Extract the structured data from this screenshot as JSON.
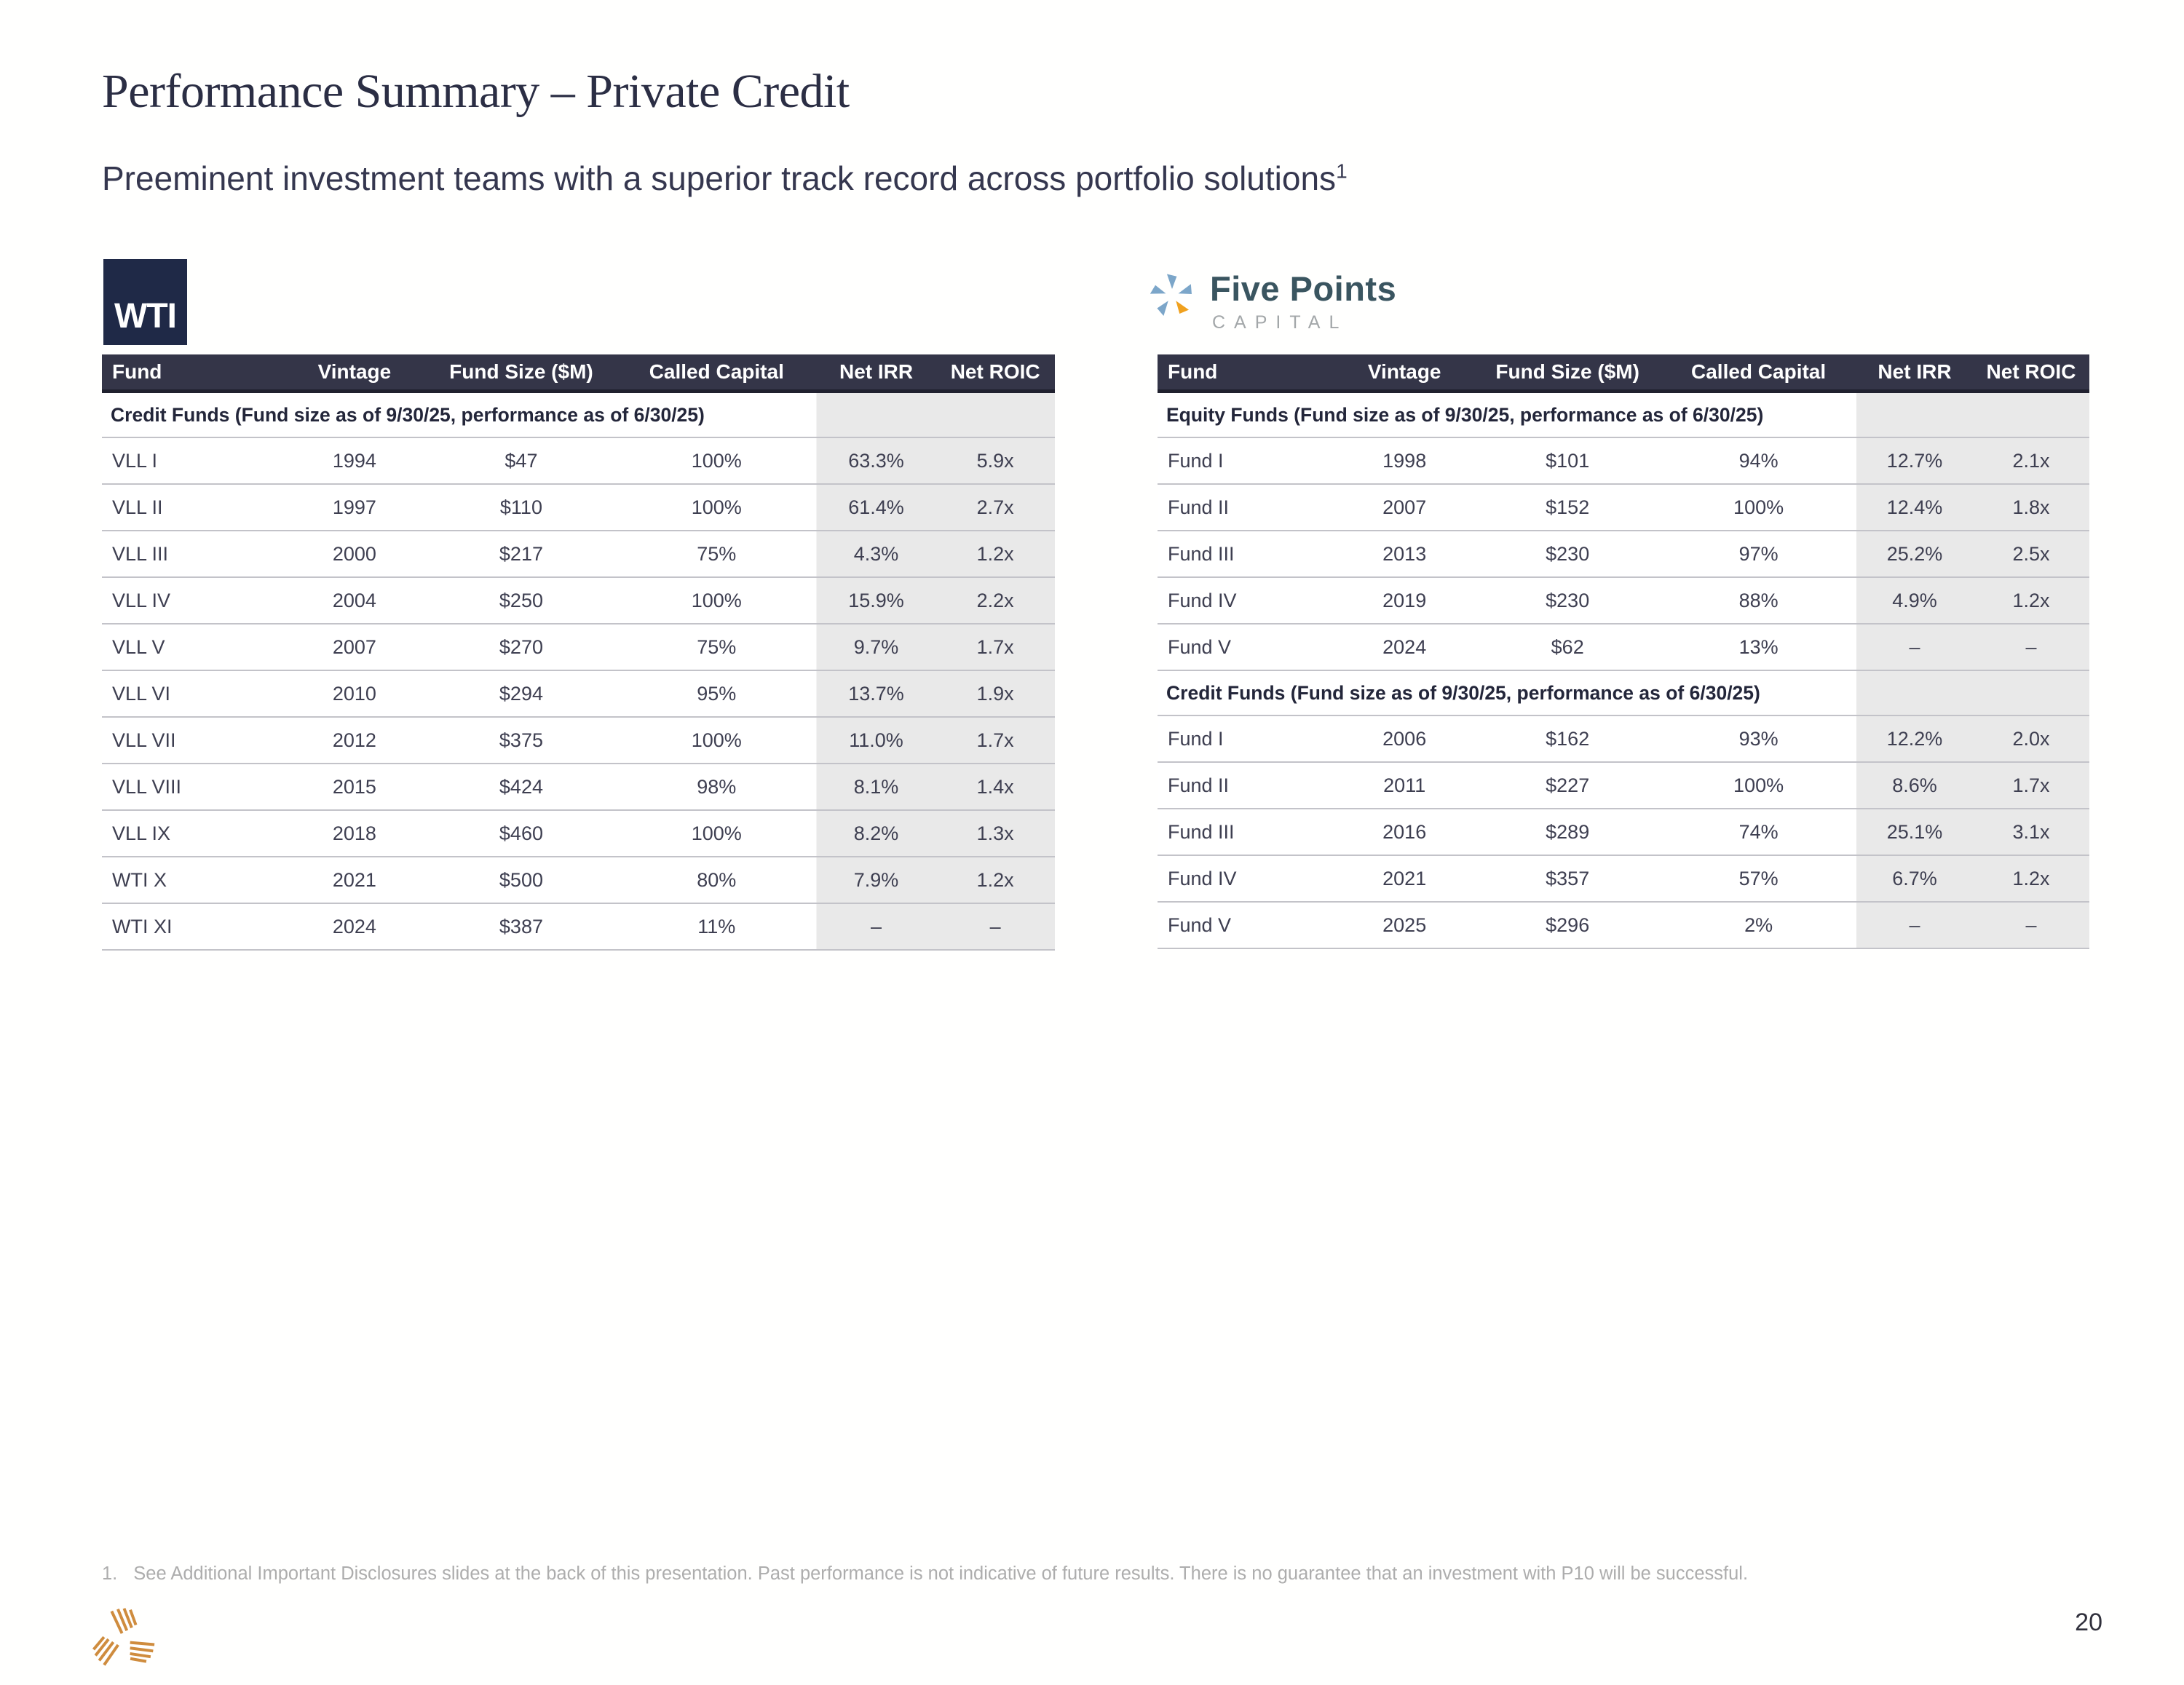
{
  "header": {
    "title": "Performance Summary – Private Credit",
    "subtitle": "Preeminent investment teams with a superior track record across portfolio solutions",
    "subtitle_superscript": "1"
  },
  "panels": [
    {
      "logo": {
        "text": "WTI"
      }
    },
    {
      "logo": {
        "name": "Five Points",
        "subtext": "CAPITAL"
      }
    }
  ],
  "tables": [
    {
      "columns": [
        "Fund",
        "Vintage",
        "Fund Size ($M)",
        "Called Capital",
        "Net IRR",
        "Net ROIC"
      ],
      "highlighted_columns": [
        "Net IRR",
        "Net ROIC"
      ],
      "sections": [
        {
          "label": "Credit Funds (Fund size as of 9/30/25, performance as of 6/30/25)",
          "rows": [
            [
              "VLL I",
              "1994",
              "$47",
              "100%",
              "63.3%",
              "5.9x"
            ],
            [
              "VLL II",
              "1997",
              "$110",
              "100%",
              "61.4%",
              "2.7x"
            ],
            [
              "VLL III",
              "2000",
              "$217",
              "75%",
              "4.3%",
              "1.2x"
            ],
            [
              "VLL IV",
              "2004",
              "$250",
              "100%",
              "15.9%",
              "2.2x"
            ],
            [
              "VLL V",
              "2007",
              "$270",
              "75%",
              "9.7%",
              "1.7x"
            ],
            [
              "VLL VI",
              "2010",
              "$294",
              "95%",
              "13.7%",
              "1.9x"
            ],
            [
              "VLL VII",
              "2012",
              "$375",
              "100%",
              "11.0%",
              "1.7x"
            ],
            [
              "VLL VIII",
              "2015",
              "$424",
              "98%",
              "8.1%",
              "1.4x"
            ],
            [
              "VLL IX",
              "2018",
              "$460",
              "100%",
              "8.2%",
              "1.3x"
            ],
            [
              "WTI X",
              "2021",
              "$500",
              "80%",
              "7.9%",
              "1.2x"
            ],
            [
              "WTI XI",
              "2024",
              "$387",
              "11%",
              "–",
              "–"
            ]
          ]
        }
      ]
    },
    {
      "columns": [
        "Fund",
        "Vintage",
        "Fund Size ($M)",
        "Called Capital",
        "Net IRR",
        "Net ROIC"
      ],
      "highlighted_columns": [
        "Net IRR",
        "Net ROIC"
      ],
      "sections": [
        {
          "label": "Equity Funds (Fund size as of 9/30/25, performance as of 6/30/25)",
          "rows": [
            [
              "Fund I",
              "1998",
              "$101",
              "94%",
              "12.7%",
              "2.1x"
            ],
            [
              "Fund II",
              "2007",
              "$152",
              "100%",
              "12.4%",
              "1.8x"
            ],
            [
              "Fund III",
              "2013",
              "$230",
              "97%",
              "25.2%",
              "2.5x"
            ],
            [
              "Fund IV",
              "2019",
              "$230",
              "88%",
              "4.9%",
              "1.2x"
            ],
            [
              "Fund V",
              "2024",
              "$62",
              "13%",
              "–",
              "–"
            ]
          ]
        },
        {
          "label": "Credit Funds (Fund size as of 9/30/25, performance as of 6/30/25)",
          "rows": [
            [
              "Fund I",
              "2006",
              "$162",
              "93%",
              "12.2%",
              "2.0x"
            ],
            [
              "Fund II",
              "2011",
              "$227",
              "100%",
              "8.6%",
              "1.7x"
            ],
            [
              "Fund III",
              "2016",
              "$289",
              "74%",
              "25.1%",
              "3.1x"
            ],
            [
              "Fund IV",
              "2021",
              "$357",
              "57%",
              "6.7%",
              "1.2x"
            ],
            [
              "Fund V",
              "2025",
              "$296",
              "2%",
              "–",
              "–"
            ]
          ]
        }
      ]
    }
  ],
  "footer": {
    "footnote_number": "1.",
    "footnote_text": "See Additional Important Disclosures slides at the back of this presentation. Past performance is not indicative of future results. There is no guarantee that an investment with P10 will be successful.",
    "page_number": "20"
  },
  "colors": {
    "table_header_bg": "#343548",
    "table_header_text": "#ffffff",
    "highlight_column_bg": "#e9e9e9",
    "row_divider": "#c3c3c9",
    "title_text": "#2b2e44",
    "body_text": "#3e3f51",
    "wti_logo_bg": "#1f2947",
    "five_points_teal": "#3a5560",
    "five_points_blue": "#7ca6c9",
    "five_points_orange": "#f0a11e",
    "p10_orange": "#cf8c3e",
    "footnote_text": "#adadad"
  }
}
